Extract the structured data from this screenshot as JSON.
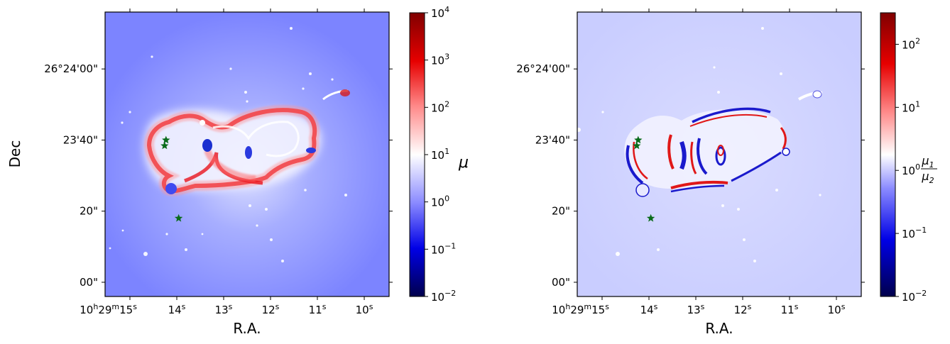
{
  "chart_data": [
    {
      "type": "heatmap",
      "xlabel": "R.A.",
      "ylabel": "Dec",
      "x_ticks": [
        {
          "main": "10",
          "sup1": "h",
          "mid1": "29",
          "sup2": "m",
          "mid2": "15",
          "sup3": "s",
          "x_s": 15
        },
        {
          "main": "14",
          "sup1": "s",
          "x_s": 14
        },
        {
          "main": "13",
          "sup1": "s",
          "x_s": 13
        },
        {
          "main": "12",
          "sup1": "s",
          "x_s": 12
        },
        {
          "main": "11",
          "sup1": "s",
          "x_s": 11
        },
        {
          "main": "10",
          "sup1": "s",
          "x_s": 10
        }
      ],
      "xlim_s": [
        15.53,
        9.47
      ],
      "y_ticks": [
        {
          "label": "26°24'00\"",
          "dec_arcsec": 60
        },
        {
          "label": "23'40\"",
          "dec_arcsec": 40
        },
        {
          "label": "20\"",
          "dec_arcsec": 20
        },
        {
          "label": "00\"",
          "dec_arcsec": 0
        }
      ],
      "ylim_arcsec": [
        -4,
        76
      ],
      "colorbar": {
        "label": "μ",
        "scale": "log",
        "cmap": "seismic",
        "range_exp": [
          -2,
          4
        ],
        "ticks": [
          {
            "base": "10",
            "exp": "4"
          },
          {
            "base": "10",
            "exp": "3"
          },
          {
            "base": "10",
            "exp": "2"
          },
          {
            "base": "10",
            "exp": "1"
          },
          {
            "base": "10",
            "exp": "0"
          },
          {
            "base": "10",
            "exp": "−1"
          },
          {
            "base": "10",
            "exp": "−2"
          }
        ]
      },
      "markers": [
        {
          "type": "star",
          "color": "#0a6b1a",
          "x_s": 14.23,
          "dec_arcsec": 40.0
        },
        {
          "type": "star",
          "color": "#0a6b1a",
          "x_s": 14.26,
          "dec_arcsec": 38.4
        },
        {
          "type": "star",
          "color": "#0a6b1a",
          "x_s": 13.96,
          "dec_arcsec": 18.0
        }
      ]
    },
    {
      "type": "heatmap",
      "xlabel": "R.A.",
      "ylabel": "",
      "x_ticks": [
        {
          "main": "10",
          "sup1": "h",
          "mid1": "29",
          "sup2": "m",
          "mid2": "15",
          "sup3": "s",
          "x_s": 15
        },
        {
          "main": "14",
          "sup1": "s",
          "x_s": 14
        },
        {
          "main": "13",
          "sup1": "s",
          "x_s": 13
        },
        {
          "main": "12",
          "sup1": "s",
          "x_s": 12
        },
        {
          "main": "11",
          "sup1": "s",
          "x_s": 11
        },
        {
          "main": "10",
          "sup1": "s",
          "x_s": 10
        }
      ],
      "xlim_s": [
        15.53,
        9.47
      ],
      "y_ticks": [
        {
          "label": "26°24'00\"",
          "dec_arcsec": 60
        },
        {
          "label": "23'40\"",
          "dec_arcsec": 40
        },
        {
          "label": "20\"",
          "dec_arcsec": 20
        },
        {
          "label": "00\"",
          "dec_arcsec": 0
        }
      ],
      "ylim_arcsec": [
        -4,
        76
      ],
      "colorbar": {
        "label_num": "μ",
        "label_num_sub": "1",
        "label_den": "μ",
        "label_den_sub": "2",
        "scale": "log",
        "cmap": "seismic",
        "range_exp": [
          -2,
          2.5
        ],
        "ticks": [
          {
            "base": "10",
            "exp": "2",
            "e": 2
          },
          {
            "base": "10",
            "exp": "1",
            "e": 1
          },
          {
            "base": "10",
            "exp": "0",
            "e": 0
          },
          {
            "base": "10",
            "exp": "−1",
            "e": -1
          },
          {
            "base": "10",
            "exp": "−2",
            "e": -2
          }
        ]
      },
      "markers": [
        {
          "type": "star",
          "color": "#0a6b1a",
          "x_s": 14.23,
          "dec_arcsec": 40.0
        },
        {
          "type": "star",
          "color": "#0a6b1a",
          "x_s": 14.26,
          "dec_arcsec": 38.4
        },
        {
          "type": "star",
          "color": "#0a6b1a",
          "x_s": 13.96,
          "dec_arcsec": 18.0
        }
      ]
    }
  ]
}
